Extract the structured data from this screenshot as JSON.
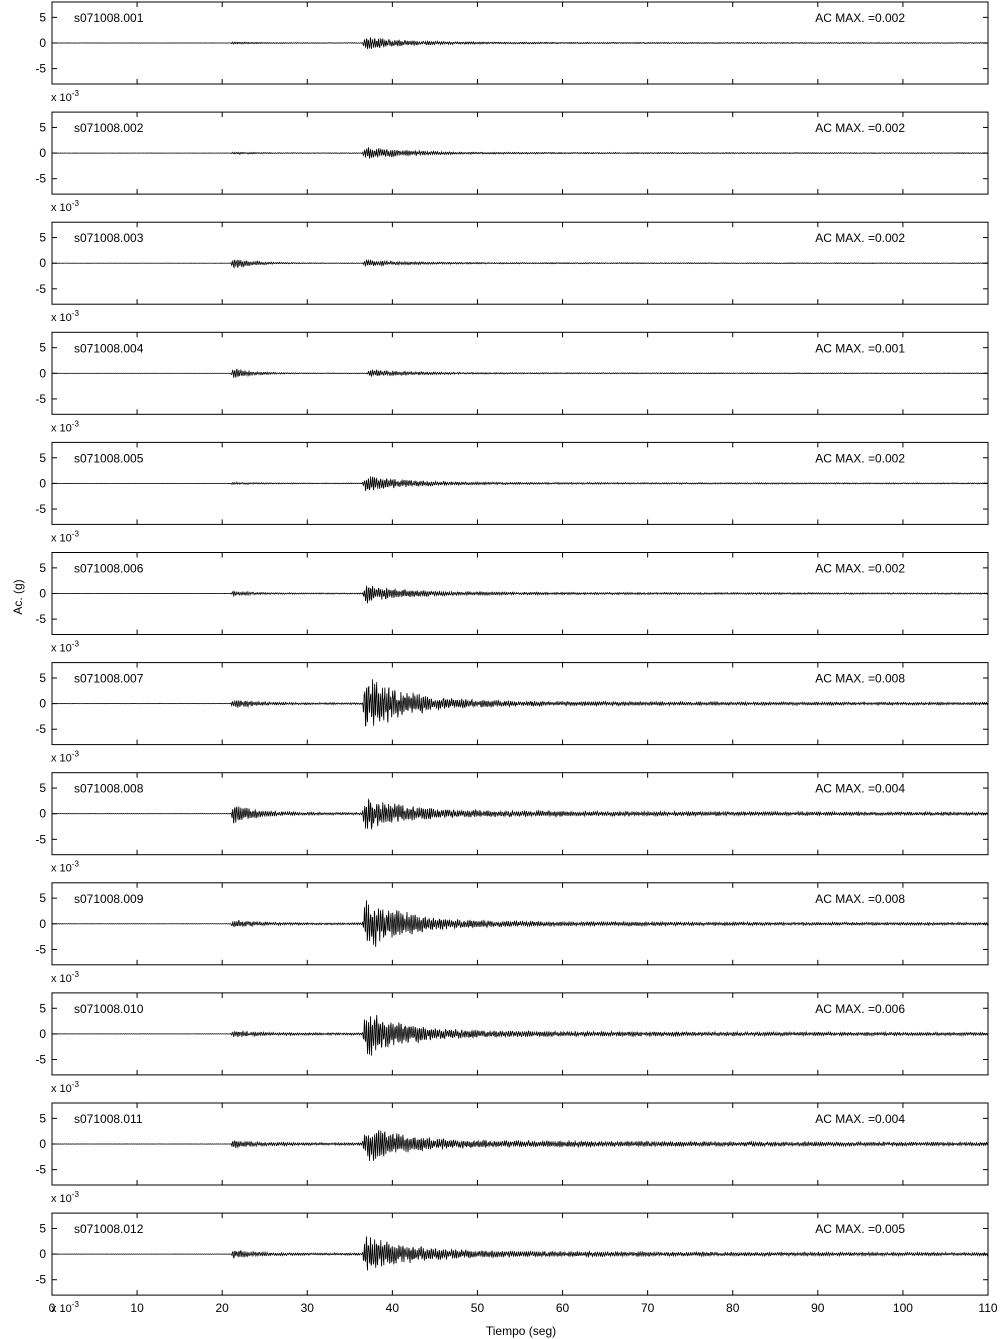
{
  "chart_data": {
    "type": "line",
    "xlabel": "Tiempo (seg)",
    "ylabel": "Ac. (g)",
    "xlim": [
      0,
      110
    ],
    "xticks": [
      0,
      10,
      20,
      30,
      40,
      50,
      60,
      70,
      80,
      90,
      100,
      110
    ],
    "ylim": [
      -8,
      8
    ],
    "yticks": [
      5,
      0,
      -5
    ],
    "yscale_label": "x 10",
    "yscale_exponent": "-3",
    "grid": false,
    "series": [
      {
        "name": "s071008.001",
        "max_label": "AC MAX. =0.002",
        "p_arrival": 21,
        "s_arrival": 36.5,
        "p_amp": 0.3,
        "s_amp": 1.6,
        "noise": 0.08,
        "tail": 0.15
      },
      {
        "name": "s071008.002",
        "max_label": "AC MAX. =0.002",
        "p_arrival": 21,
        "s_arrival": 36.5,
        "p_amp": 0.3,
        "s_amp": 1.5,
        "noise": 0.08,
        "tail": 0.15
      },
      {
        "name": "s071008.003",
        "max_label": "AC MAX. =0.002",
        "p_arrival": 21,
        "s_arrival": 36.5,
        "p_amp": 1.5,
        "s_amp": 0.7,
        "noise": 0.08,
        "tail": 0.12
      },
      {
        "name": "s071008.004",
        "max_label": "AC MAX. =0.001",
        "p_arrival": 21,
        "s_arrival": 37,
        "p_amp": 1.3,
        "s_amp": 0.8,
        "noise": 0.08,
        "tail": 0.12
      },
      {
        "name": "s071008.005",
        "max_label": "AC MAX. =0.002",
        "p_arrival": 21,
        "s_arrival": 36.5,
        "p_amp": 0.3,
        "s_amp": 2.0,
        "noise": 0.08,
        "tail": 0.2
      },
      {
        "name": "s071008.006",
        "max_label": "AC MAX. =0.002",
        "p_arrival": 21,
        "s_arrival": 36.5,
        "p_amp": 0.6,
        "s_amp": 2.0,
        "noise": 0.12,
        "tail": 0.25
      },
      {
        "name": "s071008.007",
        "max_label": "AC MAX. =0.008",
        "p_arrival": 21,
        "s_arrival": 36.5,
        "p_amp": 1.0,
        "s_amp": 7.0,
        "noise": 0.12,
        "tail": 0.5
      },
      {
        "name": "s071008.008",
        "max_label": "AC MAX. =0.004",
        "p_arrival": 21,
        "s_arrival": 36.5,
        "p_amp": 2.5,
        "s_amp": 3.8,
        "noise": 0.15,
        "tail": 0.6
      },
      {
        "name": "s071008.009",
        "max_label": "AC MAX. =0.008",
        "p_arrival": 21,
        "s_arrival": 36.5,
        "p_amp": 1.0,
        "s_amp": 6.5,
        "noise": 0.12,
        "tail": 0.5
      },
      {
        "name": "s071008.010",
        "max_label": "AC MAX. =0.006",
        "p_arrival": 21,
        "s_arrival": 36.5,
        "p_amp": 0.8,
        "s_amp": 5.5,
        "noise": 0.12,
        "tail": 0.6
      },
      {
        "name": "s071008.011",
        "max_label": "AC MAX. =0.004",
        "p_arrival": 21,
        "s_arrival": 36.5,
        "p_amp": 1.0,
        "s_amp": 3.8,
        "noise": 0.12,
        "tail": 0.7
      },
      {
        "name": "s071008.012",
        "max_label": "AC MAX. =0.005",
        "p_arrival": 21,
        "s_arrival": 36.5,
        "p_amp": 1.0,
        "s_amp": 4.8,
        "noise": 0.12,
        "tail": 0.6
      }
    ]
  }
}
